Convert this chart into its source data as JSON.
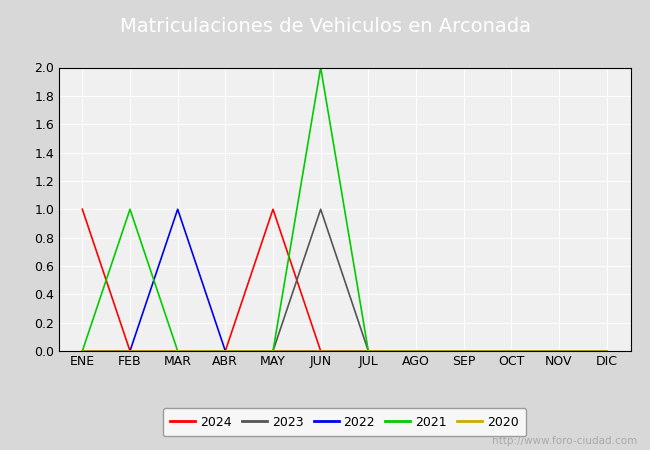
{
  "title": "Matriculaciones de Vehiculos en Arconada",
  "months": [
    "ENE",
    "FEB",
    "MAR",
    "ABR",
    "MAY",
    "JUN",
    "JUL",
    "AGO",
    "SEP",
    "OCT",
    "NOV",
    "DIC"
  ],
  "series": {
    "2024": {
      "color": "#ff0000",
      "data": [
        1,
        0,
        0,
        0,
        1,
        0,
        0,
        0,
        0,
        0,
        0,
        0
      ]
    },
    "2023": {
      "color": "#555555",
      "data": [
        0,
        0,
        0,
        0,
        0,
        1,
        0,
        0,
        0,
        0,
        0,
        0
      ]
    },
    "2022": {
      "color": "#0000ee",
      "data": [
        0,
        0,
        1,
        0,
        0,
        0,
        0,
        0,
        0,
        0,
        0,
        0
      ]
    },
    "2021": {
      "color": "#00cc00",
      "data": [
        0,
        1,
        0,
        0,
        0,
        2,
        0,
        0,
        0,
        0,
        0,
        0
      ]
    },
    "2020": {
      "color": "#ccaa00",
      "data": [
        0,
        0,
        0,
        0,
        0,
        0,
        0,
        0,
        0,
        0,
        0,
        0
      ]
    }
  },
  "legend_order": [
    "2024",
    "2023",
    "2022",
    "2021",
    "2020"
  ],
  "ylim": [
    0,
    2.0
  ],
  "yticks": [
    0.0,
    0.2,
    0.4,
    0.6,
    0.8,
    1.0,
    1.2,
    1.4,
    1.6,
    1.8,
    2.0
  ],
  "fig_bg_color": "#d8d8d8",
  "plot_bg_color": "#f0f0f0",
  "title_bg_color": "#4a90d9",
  "title_text_color": "#ffffff",
  "grid_color": "#ffffff",
  "border_color": "#000000",
  "watermark": "http://www.foro-ciudad.com",
  "watermark_color": "#aaaaaa",
  "title_fontsize": 14,
  "tick_fontsize": 9,
  "legend_fontsize": 9,
  "linewidth": 1.2
}
